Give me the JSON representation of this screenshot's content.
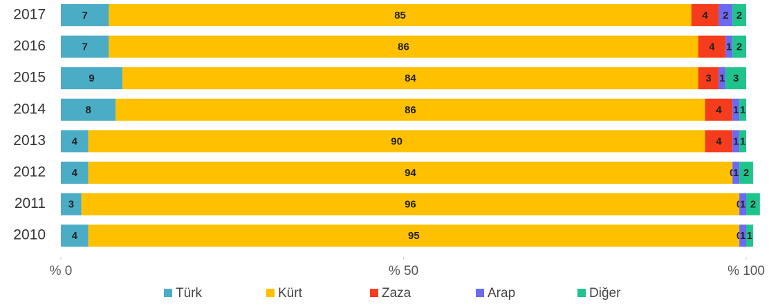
{
  "chart_data": {
    "type": "stacked_barh",
    "categories": [
      "2017",
      "2016",
      "2015",
      "2014",
      "2013",
      "2012",
      "2011",
      "2010"
    ],
    "series": [
      {
        "name": "Türk",
        "color": "#4bacc6",
        "values": [
          7,
          7,
          9,
          8,
          4,
          4,
          3,
          4
        ]
      },
      {
        "name": "Kürt",
        "color": "#ffc000",
        "values": [
          85,
          86,
          84,
          86,
          90,
          94,
          96,
          95
        ]
      },
      {
        "name": "Zaza",
        "color": "#f53c1c",
        "values": [
          4,
          4,
          3,
          4,
          4,
          0,
          0,
          0
        ]
      },
      {
        "name": "Arap",
        "color": "#6a6af2",
        "values": [
          2,
          1,
          1,
          1,
          1,
          1,
          1,
          1
        ]
      },
      {
        "name": "Diğer",
        "color": "#1fc48c",
        "values": [
          2,
          2,
          3,
          1,
          1,
          2,
          2,
          1
        ]
      }
    ],
    "xlim": [
      0,
      100
    ],
    "xticks": [
      {
        "value": 0,
        "label": "% 0"
      },
      {
        "value": 50,
        "label": "% 50"
      },
      {
        "value": 100,
        "label": "% 100"
      }
    ],
    "legend": "bottom"
  }
}
